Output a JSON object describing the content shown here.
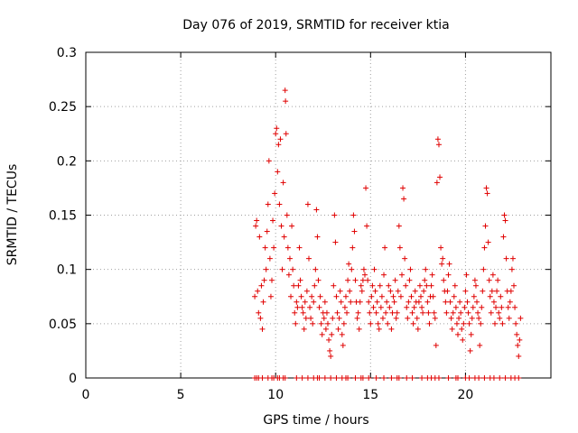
{
  "chart_data": {
    "type": "scatter",
    "title": "Day 076 of 2019, SRMTID for receiver ktia",
    "xlabel": "GPS time / hours",
    "ylabel": "SRMTID / TECUs",
    "xlim": [
      0,
      24.5
    ],
    "ylim": [
      0,
      0.3
    ],
    "xticks": [
      0,
      5,
      10,
      15,
      20
    ],
    "xtick_labels": [
      "0",
      "5",
      "10",
      "15",
      "20"
    ],
    "yticks": [
      0,
      0.05,
      0.1,
      0.15,
      0.2,
      0.25,
      0.3
    ],
    "ytick_labels": [
      "0",
      "0.05",
      "0.1",
      "0.15",
      "0.2",
      "0.25",
      "0.3"
    ],
    "grid": true,
    "marker": "+",
    "series": [
      {
        "name": "SRMTID",
        "color": "#e00000",
        "points": [
          [
            8.9,
            0.075
          ],
          [
            8.95,
            0.14
          ],
          [
            9.0,
            0.145
          ],
          [
            9.05,
            0.08
          ],
          [
            9.1,
            0.06
          ],
          [
            9.15,
            0.13
          ],
          [
            9.2,
            0.055
          ],
          [
            9.25,
            0.085
          ],
          [
            9.3,
            0.045
          ],
          [
            9.35,
            0.07
          ],
          [
            9.4,
            0.09
          ],
          [
            9.45,
            0.12
          ],
          [
            9.5,
            0.1
          ],
          [
            9.55,
            0.135
          ],
          [
            9.6,
            0.16
          ],
          [
            9.65,
            0.2
          ],
          [
            9.7,
            0.11
          ],
          [
            9.75,
            0.075
          ],
          [
            9.8,
            0.09
          ],
          [
            9.85,
            0.145
          ],
          [
            9.9,
            0.12
          ],
          [
            9.95,
            0.17
          ],
          [
            10.0,
            0.225
          ],
          [
            10.05,
            0.23
          ],
          [
            10.1,
            0.19
          ],
          [
            10.15,
            0.215
          ],
          [
            10.2,
            0.16
          ],
          [
            10.25,
            0.22
          ],
          [
            10.3,
            0.14
          ],
          [
            10.35,
            0.1
          ],
          [
            10.4,
            0.18
          ],
          [
            10.45,
            0.13
          ],
          [
            10.5,
            0.265
          ],
          [
            10.52,
            0.255
          ],
          [
            10.55,
            0.225
          ],
          [
            10.6,
            0.15
          ],
          [
            10.65,
            0.12
          ],
          [
            10.7,
            0.095
          ],
          [
            10.75,
            0.11
          ],
          [
            10.8,
            0.075
          ],
          [
            10.85,
            0.14
          ],
          [
            10.9,
            0.1
          ],
          [
            10.95,
            0.085
          ],
          [
            11.0,
            0.06
          ],
          [
            11.05,
            0.05
          ],
          [
            11.1,
            0.07
          ],
          [
            11.15,
            0.065
          ],
          [
            11.2,
            0.085
          ],
          [
            11.25,
            0.12
          ],
          [
            11.3,
            0.09
          ],
          [
            11.35,
            0.075
          ],
          [
            11.4,
            0.065
          ],
          [
            11.45,
            0.06
          ],
          [
            11.5,
            0.045
          ],
          [
            11.55,
            0.07
          ],
          [
            11.6,
            0.055
          ],
          [
            11.65,
            0.08
          ],
          [
            11.7,
            0.16
          ],
          [
            11.75,
            0.11
          ],
          [
            11.8,
            0.065
          ],
          [
            11.85,
            0.055
          ],
          [
            11.9,
            0.075
          ],
          [
            11.95,
            0.05
          ],
          [
            12.0,
            0.07
          ],
          [
            12.05,
            0.085
          ],
          [
            12.1,
            0.1
          ],
          [
            12.15,
            0.155
          ],
          [
            12.2,
            0.13
          ],
          [
            12.25,
            0.09
          ],
          [
            12.3,
            0.065
          ],
          [
            12.35,
            0.075
          ],
          [
            12.4,
            0.05
          ],
          [
            12.45,
            0.04
          ],
          [
            12.5,
            0.06
          ],
          [
            12.55,
            0.055
          ],
          [
            12.6,
            0.07
          ],
          [
            12.65,
            0.045
          ],
          [
            12.7,
            0.06
          ],
          [
            12.75,
            0.05
          ],
          [
            12.8,
            0.035
          ],
          [
            12.85,
            0.025
          ],
          [
            12.9,
            0.02
          ],
          [
            12.95,
            0.04
          ],
          [
            13.0,
            0.055
          ],
          [
            13.05,
            0.085
          ],
          [
            13.1,
            0.15
          ],
          [
            13.15,
            0.125
          ],
          [
            13.2,
            0.075
          ],
          [
            13.25,
            0.06
          ],
          [
            13.3,
            0.045
          ],
          [
            13.35,
            0.055
          ],
          [
            13.4,
            0.08
          ],
          [
            13.45,
            0.07
          ],
          [
            13.5,
            0.04
          ],
          [
            13.55,
            0.03
          ],
          [
            13.6,
            0.05
          ],
          [
            13.65,
            0.065
          ],
          [
            13.7,
            0.075
          ],
          [
            13.75,
            0.06
          ],
          [
            13.8,
            0.09
          ],
          [
            13.85,
            0.105
          ],
          [
            13.9,
            0.08
          ],
          [
            13.95,
            0.07
          ],
          [
            14.0,
            0.1
          ],
          [
            14.05,
            0.12
          ],
          [
            14.1,
            0.15
          ],
          [
            14.15,
            0.135
          ],
          [
            14.2,
            0.09
          ],
          [
            14.25,
            0.07
          ],
          [
            14.3,
            0.055
          ],
          [
            14.35,
            0.06
          ],
          [
            14.4,
            0.045
          ],
          [
            14.45,
            0.07
          ],
          [
            14.5,
            0.085
          ],
          [
            14.55,
            0.08
          ],
          [
            14.6,
            0.09
          ],
          [
            14.65,
            0.1
          ],
          [
            14.7,
            0.095
          ],
          [
            14.75,
            0.175
          ],
          [
            14.8,
            0.14
          ],
          [
            14.85,
            0.09
          ],
          [
            14.9,
            0.07
          ],
          [
            14.95,
            0.06
          ],
          [
            15.0,
            0.05
          ],
          [
            15.05,
            0.075
          ],
          [
            15.1,
            0.085
          ],
          [
            15.15,
            0.065
          ],
          [
            15.2,
            0.1
          ],
          [
            15.25,
            0.08
          ],
          [
            15.3,
            0.06
          ],
          [
            15.35,
            0.07
          ],
          [
            15.4,
            0.05
          ],
          [
            15.45,
            0.045
          ],
          [
            15.5,
            0.085
          ],
          [
            15.55,
            0.065
          ],
          [
            15.6,
            0.075
          ],
          [
            15.65,
            0.055
          ],
          [
            15.7,
            0.095
          ],
          [
            15.75,
            0.12
          ],
          [
            15.8,
            0.06
          ],
          [
            15.85,
            0.07
          ],
          [
            15.9,
            0.05
          ],
          [
            15.95,
            0.085
          ],
          [
            16.0,
            0.065
          ],
          [
            16.05,
            0.08
          ],
          [
            16.1,
            0.045
          ],
          [
            16.15,
            0.06
          ],
          [
            16.2,
            0.075
          ],
          [
            16.25,
            0.07
          ],
          [
            16.3,
            0.09
          ],
          [
            16.35,
            0.055
          ],
          [
            16.4,
            0.06
          ],
          [
            16.45,
            0.08
          ],
          [
            16.5,
            0.14
          ],
          [
            16.55,
            0.12
          ],
          [
            16.6,
            0.075
          ],
          [
            16.65,
            0.095
          ],
          [
            16.7,
            0.175
          ],
          [
            16.75,
            0.165
          ],
          [
            16.8,
            0.11
          ],
          [
            16.85,
            0.085
          ],
          [
            16.9,
            0.065
          ],
          [
            16.95,
            0.055
          ],
          [
            17.0,
            0.07
          ],
          [
            17.05,
            0.09
          ],
          [
            17.1,
            0.1
          ],
          [
            17.15,
            0.075
          ],
          [
            17.2,
            0.06
          ],
          [
            17.25,
            0.05
          ],
          [
            17.3,
            0.065
          ],
          [
            17.35,
            0.08
          ],
          [
            17.4,
            0.07
          ],
          [
            17.45,
            0.055
          ],
          [
            17.5,
            0.045
          ],
          [
            17.55,
            0.07
          ],
          [
            17.6,
            0.085
          ],
          [
            17.65,
            0.075
          ],
          [
            17.7,
            0.065
          ],
          [
            17.75,
            0.06
          ],
          [
            17.8,
            0.08
          ],
          [
            17.85,
            0.09
          ],
          [
            17.9,
            0.1
          ],
          [
            17.95,
            0.085
          ],
          [
            18.0,
            0.07
          ],
          [
            18.05,
            0.06
          ],
          [
            18.1,
            0.05
          ],
          [
            18.15,
            0.075
          ],
          [
            18.2,
            0.085
          ],
          [
            18.25,
            0.095
          ],
          [
            18.3,
            0.075
          ],
          [
            18.35,
            0.06
          ],
          [
            18.4,
            0.055
          ],
          [
            18.45,
            0.03
          ],
          [
            18.5,
            0.18
          ],
          [
            18.55,
            0.22
          ],
          [
            18.6,
            0.215
          ],
          [
            18.65,
            0.185
          ],
          [
            18.7,
            0.12
          ],
          [
            18.75,
            0.105
          ],
          [
            18.8,
            0.11
          ],
          [
            18.85,
            0.09
          ],
          [
            18.9,
            0.08
          ],
          [
            18.95,
            0.07
          ],
          [
            19.0,
            0.06
          ],
          [
            19.05,
            0.08
          ],
          [
            19.1,
            0.095
          ],
          [
            19.15,
            0.105
          ],
          [
            19.2,
            0.07
          ],
          [
            19.25,
            0.055
          ],
          [
            19.3,
            0.045
          ],
          [
            19.35,
            0.06
          ],
          [
            19.4,
            0.075
          ],
          [
            19.45,
            0.085
          ],
          [
            19.5,
            0.065
          ],
          [
            19.55,
            0.05
          ],
          [
            19.6,
            0.04
          ],
          [
            19.65,
            0.055
          ],
          [
            19.7,
            0.07
          ],
          [
            19.75,
            0.06
          ],
          [
            19.8,
            0.045
          ],
          [
            19.85,
            0.035
          ],
          [
            19.9,
            0.05
          ],
          [
            19.95,
            0.065
          ],
          [
            20.0,
            0.08
          ],
          [
            20.05,
            0.095
          ],
          [
            20.1,
            0.07
          ],
          [
            20.15,
            0.06
          ],
          [
            20.2,
            0.05
          ],
          [
            20.25,
            0.025
          ],
          [
            20.3,
            0.04
          ],
          [
            20.35,
            0.055
          ],
          [
            20.4,
            0.065
          ],
          [
            20.45,
            0.075
          ],
          [
            20.5,
            0.09
          ],
          [
            20.55,
            0.085
          ],
          [
            20.6,
            0.07
          ],
          [
            20.65,
            0.06
          ],
          [
            20.7,
            0.055
          ],
          [
            20.75,
            0.03
          ],
          [
            20.8,
            0.05
          ],
          [
            20.85,
            0.065
          ],
          [
            20.9,
            0.08
          ],
          [
            20.95,
            0.1
          ],
          [
            21.0,
            0.12
          ],
          [
            21.05,
            0.14
          ],
          [
            21.1,
            0.175
          ],
          [
            21.15,
            0.17
          ],
          [
            21.2,
            0.125
          ],
          [
            21.25,
            0.09
          ],
          [
            21.3,
            0.075
          ],
          [
            21.35,
            0.06
          ],
          [
            21.4,
            0.08
          ],
          [
            21.45,
            0.095
          ],
          [
            21.5,
            0.07
          ],
          [
            21.55,
            0.05
          ],
          [
            21.6,
            0.065
          ],
          [
            21.65,
            0.08
          ],
          [
            21.7,
            0.09
          ],
          [
            21.75,
            0.06
          ],
          [
            21.8,
            0.055
          ],
          [
            21.85,
            0.075
          ],
          [
            21.9,
            0.065
          ],
          [
            21.95,
            0.05
          ],
          [
            22.0,
            0.13
          ],
          [
            22.05,
            0.15
          ],
          [
            22.1,
            0.145
          ],
          [
            22.15,
            0.11
          ],
          [
            22.2,
            0.08
          ],
          [
            22.25,
            0.065
          ],
          [
            22.3,
            0.055
          ],
          [
            22.35,
            0.07
          ],
          [
            22.4,
            0.08
          ],
          [
            22.45,
            0.1
          ],
          [
            22.5,
            0.11
          ],
          [
            22.55,
            0.085
          ],
          [
            22.6,
            0.065
          ],
          [
            22.65,
            0.05
          ],
          [
            22.7,
            0.04
          ],
          [
            22.75,
            0.03
          ],
          [
            22.8,
            0.02
          ],
          [
            22.85,
            0.035
          ],
          [
            22.9,
            0.055
          ]
        ],
        "zero_points": [
          8.9,
          9.0,
          9.1,
          9.3,
          9.6,
          9.8,
          9.9,
          10.1,
          10.2,
          10.4,
          10.5,
          11.1,
          11.4,
          11.7,
          12.0,
          12.2,
          12.3,
          12.6,
          12.9,
          13.2,
          13.5,
          13.7,
          13.8,
          14.2,
          14.5,
          14.6,
          14.9,
          15.3,
          15.7,
          16.1,
          16.4,
          16.5,
          16.9,
          17.2,
          17.7,
          18.0,
          18.2,
          18.4,
          18.6,
          19.1,
          19.5,
          19.6,
          20.0,
          20.2,
          20.5,
          20.7,
          21.0,
          21.3,
          21.5,
          21.8,
          22.1,
          22.4,
          22.6,
          22.8
        ]
      }
    ]
  }
}
